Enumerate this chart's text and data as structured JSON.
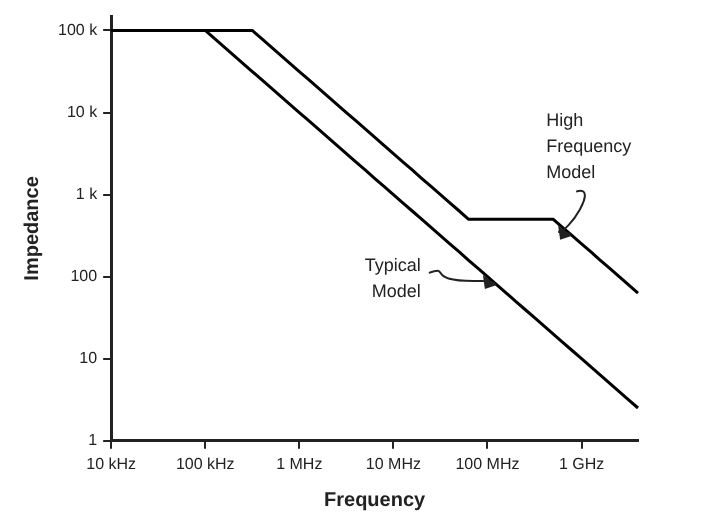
{
  "chart_data": {
    "type": "line",
    "xlabel": "Frequency",
    "ylabel": "Impedance",
    "log": "y",
    "ylim": [
      1,
      150000
    ],
    "categories": [
      "10 kHz",
      null,
      null,
      null,
      null,
      null,
      null,
      null,
      null,
      null,
      "100 kHz",
      null,
      null,
      null,
      null,
      null,
      null,
      null,
      null,
      null,
      "1 MHz",
      null,
      null,
      null,
      null,
      null,
      null,
      null,
      null,
      null,
      "10 MHz",
      null,
      null,
      null,
      null,
      null,
      null,
      null,
      null,
      null,
      "100 MHz",
      null,
      null,
      null,
      null,
      null,
      null,
      null,
      null,
      null,
      "1 GHz",
      null,
      null,
      null,
      null,
      null,
      null
    ],
    "yticks": [
      1,
      10,
      100,
      {
        "value": 1000,
        "label": "1 k"
      },
      {
        "value": 10000,
        "label": "10 k"
      },
      {
        "value": 100000,
        "label": "100 k"
      }
    ],
    "marker": "none",
    "line_style": "solid",
    "series": [
      {
        "name": "Typical Model",
        "color": "#000000",
        "values": [
          100000,
          100000,
          100000,
          100000,
          100000,
          100000,
          100000,
          100000,
          100000,
          100000,
          100000,
          79400,
          63100,
          50100,
          39800,
          31600,
          25100,
          20000,
          15800,
          12600,
          10000,
          7940,
          6310,
          5010,
          3980,
          3160,
          2510,
          2000,
          1580,
          1260,
          1000,
          794,
          631,
          501,
          398,
          316,
          251,
          200,
          158,
          126,
          100,
          79.4,
          63.1,
          50.1,
          39.8,
          31.6,
          25.1,
          20,
          15.8,
          12.6,
          10,
          7.94,
          6.31,
          5.01,
          3.98,
          3.16,
          2.51
        ]
      },
      {
        "name": "High Frequency Model",
        "color": "#000000",
        "values": [
          100000,
          100000,
          100000,
          100000,
          100000,
          100000,
          100000,
          100000,
          100000,
          100000,
          100000,
          100000,
          100000,
          100000,
          100000,
          100000,
          79400,
          63100,
          50100,
          39800,
          31600,
          25100,
          20000,
          15800,
          12600,
          10000,
          7940,
          6310,
          5010,
          3980,
          3160,
          2510,
          2000,
          1580,
          1260,
          1000,
          794,
          631,
          500,
          500,
          500,
          500,
          500,
          500,
          500,
          500,
          500,
          500,
          397,
          316,
          251,
          200,
          158,
          126,
          100,
          79.4,
          63.1
        ]
      }
    ]
  }
}
